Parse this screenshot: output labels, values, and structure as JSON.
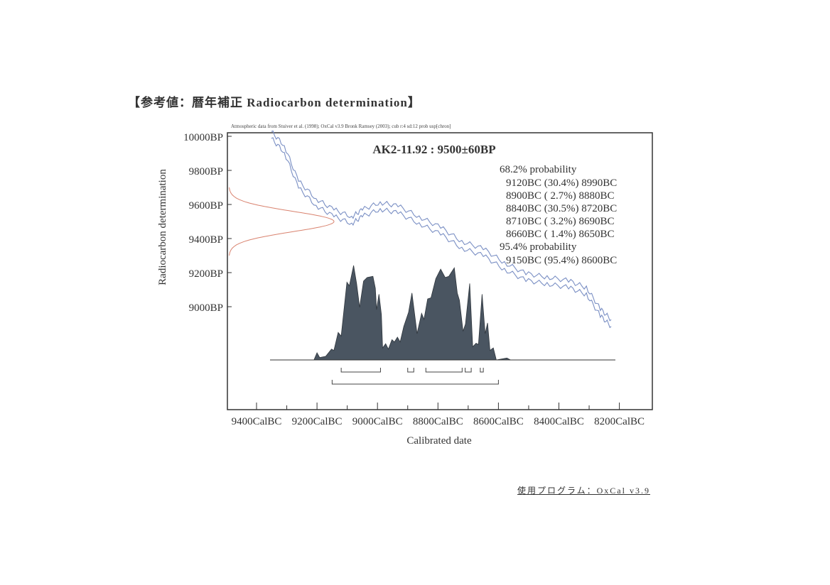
{
  "document": {
    "title": "【参考値：暦年補正 Radiocarbon determination】",
    "source_note": "Atmospheric data from Stuiver et al. (1998); OxCal v3.9 Bronk Ramsey (2003); cub r:4 sd:12 prob usp[chron]",
    "footer": "使用プログラム：OxCal v3.9"
  },
  "chart_data": {
    "type": "area",
    "title": "AK2-11.92 : 9500±60BP",
    "xlabel": "Calibrated date",
    "ylabel": "Radiocarbon determination",
    "xlim_calBC": [
      9400,
      8200
    ],
    "ylim_BP": [
      8800,
      10000
    ],
    "x_ticks": [
      "9400CalBC",
      "9200CalBC",
      "9000CalBC",
      "8800CalBC",
      "8600CalBC",
      "8400CalBC",
      "8200CalBC"
    ],
    "x_tick_values": [
      9400,
      9200,
      9000,
      8800,
      8600,
      8400,
      8200
    ],
    "y_ticks": [
      "10000BP",
      "9800BP",
      "9600BP",
      "9400BP",
      "9200BP",
      "9000BP"
    ],
    "y_tick_values": [
      10000,
      9800,
      9600,
      9400,
      9200,
      9000
    ],
    "measurement": {
      "mean_BP": 9500,
      "sd_BP": 60
    },
    "summary": {
      "sigma1_label": "68.2% probability",
      "sigma1_ranges": [
        "9120BC (30.4%) 8990BC",
        "8900BC ( 2.7%) 8880BC",
        "8840BC (30.5%) 8720BC",
        "8710BC ( 3.2%) 8690BC",
        "8660BC ( 1.4%) 8650BC"
      ],
      "sigma2_label": "95.4% probability",
      "sigma2_ranges": [
        "9150BC (95.4%) 8600BC"
      ]
    },
    "sigma1_brackets": [
      [
        9120,
        8990
      ],
      [
        8900,
        8880
      ],
      [
        8840,
        8720
      ],
      [
        8710,
        8690
      ],
      [
        8660,
        8650
      ]
    ],
    "sigma2_brackets": [
      [
        9150,
        8600
      ]
    ],
    "calibration_curve": {
      "calBC": [
        9351,
        9308,
        9261,
        9203,
        9144,
        9085,
        9050,
        8991,
        8932,
        8862,
        8791,
        8721,
        8650,
        8580,
        8509,
        8439,
        8368,
        8309,
        8263,
        8227
      ],
      "BP": [
        10008,
        9925,
        9717,
        9613,
        9550,
        9508,
        9550,
        9592,
        9571,
        9508,
        9446,
        9363,
        9321,
        9238,
        9175,
        9154,
        9133,
        9092,
        8967,
        8904
      ],
      "band_BP": 20
    },
    "probability_distribution": {
      "calBC": [
        9355,
        9210,
        9200,
        9191,
        9171,
        9152,
        9144,
        9130,
        9120,
        9101,
        9093,
        9079,
        9069,
        9059,
        9046,
        9034,
        9015,
        9007,
        9003,
        8995,
        8987,
        8983,
        8973,
        8964,
        8952,
        8944,
        8934,
        8925,
        8913,
        8897,
        8886,
        8878,
        8869,
        8854,
        8846,
        8834,
        8823,
        8807,
        8791,
        8776,
        8764,
        8746,
        8736,
        8729,
        8717,
        8709,
        8695,
        8685,
        8674,
        8666,
        8654,
        8644,
        8636,
        8628,
        8617,
        8607,
        8572,
        8560,
        8486
      ],
      "relative_probability": [
        0,
        0,
        0.076,
        0.025,
        0.038,
        0.114,
        0.101,
        0.291,
        0.253,
        0.823,
        0.785,
        1.0,
        0.81,
        0.557,
        0.835,
        0.873,
        0.886,
        0.759,
        0.532,
        0.696,
        0.481,
        0.127,
        0.172,
        0.114,
        0.215,
        0.19,
        0.241,
        0.19,
        0.354,
        0.506,
        0.709,
        0.506,
        0.278,
        0.494,
        0.43,
        0.646,
        0.658,
        0.861,
        0.962,
        0.873,
        0.886,
        0.975,
        0.709,
        0.633,
        0.304,
        0.38,
        0.81,
        0.139,
        0.177,
        0.165,
        0.696,
        0.278,
        0.392,
        0.101,
        0.127,
        0,
        0.02,
        0,
        0
      ]
    },
    "colors": {
      "curve": "#7a8fc4",
      "distribution": "#4a5561",
      "measurement": "#d9826e",
      "frame": "#333333"
    },
    "grid": false
  }
}
